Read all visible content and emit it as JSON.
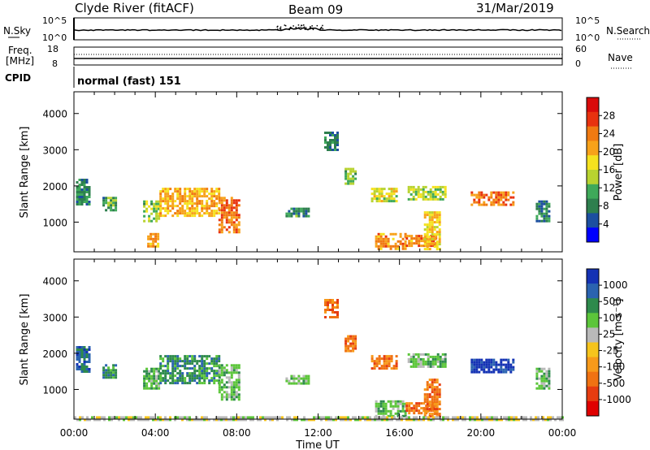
{
  "header": {
    "station": "Clyde River (fitACF)",
    "beam": "Beam 09",
    "date": "31/Mar/2019"
  },
  "top_panels": {
    "nsky_label": "N.Sky",
    "nsky_left_ticks": [
      "10^5",
      "10^0"
    ],
    "nsky_right_ticks": [
      "10^5",
      "10^0"
    ],
    "nsearch_label": "N.Search",
    "freq_label": "Freq.",
    "freq_unit": "[MHz]",
    "freq_ticks": [
      "18",
      "8"
    ],
    "nave_ticks": [
      "60",
      "0"
    ],
    "nave_label": "Nave",
    "cpid_label": "CPID",
    "cpid_value": "normal (fast) 151"
  },
  "colors": {
    "power_scale": [
      "#0000ff",
      "#1c4fa0",
      "#2e7f4e",
      "#3fa95a",
      "#b8d330",
      "#f5e21f",
      "#f7a21a",
      "#f07a12",
      "#e8320f",
      "#d90b0b"
    ],
    "velocity_scale": [
      "#1432b4",
      "#2a63b0",
      "#2e8a4c",
      "#5cc63a",
      "#b9b9b9",
      "#f6c41c",
      "#f79a1a",
      "#f07212",
      "#e63c10",
      "#e00000"
    ]
  },
  "chart_data": [
    {
      "type": "heatmap",
      "name": "power",
      "xlabel": "",
      "ylabel": "Slant Range [km]",
      "xlim": [
        0,
        24
      ],
      "ylim": [
        180,
        4600
      ],
      "yticks": [
        "1000",
        "2000",
        "3000",
        "4000"
      ],
      "colorbar": {
        "label": "Power [dB]",
        "ticks": [
          "4",
          "8",
          "12",
          "16",
          "20",
          "24",
          "28"
        ],
        "range": [
          0,
          32
        ]
      },
      "regions": [
        {
          "t0": 0.1,
          "t1": 0.8,
          "r0": 1500,
          "r1": 2200,
          "v": 9
        },
        {
          "t0": 1.4,
          "t1": 2.1,
          "r0": 1300,
          "r1": 1700,
          "v": 10
        },
        {
          "t0": 3.4,
          "t1": 4.2,
          "r0": 1050,
          "r1": 1600,
          "v": 13
        },
        {
          "t0": 4.2,
          "t1": 7.1,
          "r0": 1200,
          "r1": 1950,
          "v": 20
        },
        {
          "t0": 7.1,
          "t1": 8.1,
          "r0": 750,
          "r1": 1700,
          "v": 24
        },
        {
          "t0": 3.6,
          "t1": 4.1,
          "r0": 350,
          "r1": 700,
          "v": 22
        },
        {
          "t0": 10.4,
          "t1": 11.5,
          "r0": 1150,
          "r1": 1400,
          "v": 9
        },
        {
          "t0": 13.3,
          "t1": 13.8,
          "r0": 2050,
          "r1": 2500,
          "v": 12
        },
        {
          "t0": 14.6,
          "t1": 15.8,
          "r0": 1550,
          "r1": 1950,
          "v": 16
        },
        {
          "t0": 14.8,
          "t1": 16.3,
          "r0": 250,
          "r1": 700,
          "v": 22
        },
        {
          "t0": 16.3,
          "t1": 17.8,
          "r0": 350,
          "r1": 650,
          "v": 23
        },
        {
          "t0": 16.4,
          "t1": 18.2,
          "r0": 1650,
          "r1": 2000,
          "v": 14
        },
        {
          "t0": 17.2,
          "t1": 18.0,
          "r0": 250,
          "r1": 1300,
          "v": 18
        },
        {
          "t0": 19.5,
          "t1": 21.6,
          "r0": 1500,
          "r1": 1850,
          "v": 24
        },
        {
          "t0": 12.3,
          "t1": 12.9,
          "r0": 3000,
          "r1": 3500,
          "v": 8
        },
        {
          "t0": 22.7,
          "t1": 23.4,
          "r0": 1000,
          "r1": 1600,
          "v": 8
        }
      ]
    },
    {
      "type": "heatmap",
      "name": "velocity",
      "xlabel": "Time UT",
      "ylabel": "Slant Range [km]",
      "xlim": [
        0,
        24
      ],
      "ylim": [
        180,
        4600
      ],
      "xticks": [
        "00:00",
        "04:00",
        "08:00",
        "12:00",
        "16:00",
        "20:00",
        "00:00"
      ],
      "yticks": [
        "1000",
        "2000",
        "3000",
        "4000"
      ],
      "colorbar": {
        "label": "Velocity [m s⁻¹]",
        "ticks": [
          "1000",
          "500",
          "100",
          "25",
          "-25",
          "-100",
          "-500",
          "-1000"
        ]
      },
      "regions": [
        {
          "t0": 0.1,
          "t1": 0.8,
          "r0": 1500,
          "r1": 2200,
          "v": 1
        },
        {
          "t0": 1.4,
          "t1": 2.1,
          "r0": 1300,
          "r1": 1700,
          "v": 2
        },
        {
          "t0": 3.4,
          "t1": 4.2,
          "r0": 1050,
          "r1": 1600,
          "v": 3
        },
        {
          "t0": 4.2,
          "t1": 7.1,
          "r0": 1200,
          "r1": 1950,
          "v": 2
        },
        {
          "t0": 7.1,
          "t1": 8.1,
          "r0": 750,
          "r1": 1700,
          "v": 3
        },
        {
          "t0": 10.4,
          "t1": 11.5,
          "r0": 1150,
          "r1": 1400,
          "v": 3
        },
        {
          "t0": 13.3,
          "t1": 13.8,
          "r0": 2050,
          "r1": 2500,
          "v": 7
        },
        {
          "t0": 14.6,
          "t1": 15.8,
          "r0": 1550,
          "r1": 1950,
          "v": 7
        },
        {
          "t0": 14.8,
          "t1": 16.3,
          "r0": 250,
          "r1": 700,
          "v": 3
        },
        {
          "t0": 16.3,
          "t1": 17.8,
          "r0": 350,
          "r1": 650,
          "v": 7
        },
        {
          "t0": 16.4,
          "t1": 18.2,
          "r0": 1650,
          "r1": 2000,
          "v": 3
        },
        {
          "t0": 17.2,
          "t1": 18.0,
          "r0": 250,
          "r1": 1300,
          "v": 7
        },
        {
          "t0": 19.5,
          "t1": 21.6,
          "r0": 1500,
          "r1": 1850,
          "v": 0
        },
        {
          "t0": 12.3,
          "t1": 12.9,
          "r0": 3000,
          "r1": 3500,
          "v": 7
        },
        {
          "t0": 22.7,
          "t1": 23.4,
          "r0": 1000,
          "r1": 1600,
          "v": 3
        },
        {
          "t0": 0.0,
          "t1": 24.0,
          "r0": 180,
          "r1": 260,
          "v": 4
        }
      ]
    }
  ]
}
